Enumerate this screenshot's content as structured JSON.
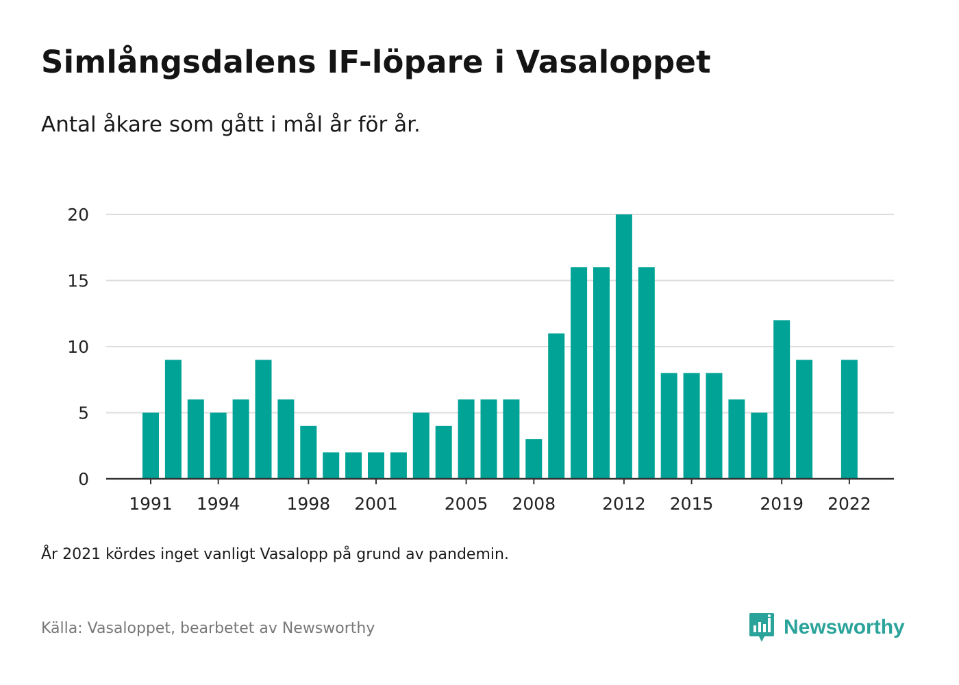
{
  "header": {
    "title": "Simlångsdalens IF-löpare i Vasaloppet",
    "subtitle": "Antal åkare som gått i mål år för år."
  },
  "footer": {
    "note": "År 2021 kördes inget vanligt Vasalopp på grund av pandemin.",
    "source": "Källa: Vasaloppet, bearbetet av Newsworthy",
    "brand": "Newsworthy"
  },
  "colors": {
    "bar": "#00a396",
    "grid": "#dddddd",
    "axis": "#333333",
    "brand": "#2aa39a"
  },
  "icons": {
    "brand_logo": "newsworthy-logo-icon"
  },
  "chart_data": {
    "type": "bar",
    "categories": [
      1991,
      1992,
      1993,
      1994,
      1995,
      1996,
      1997,
      1998,
      1999,
      2000,
      2001,
      2002,
      2003,
      2004,
      2005,
      2006,
      2007,
      2008,
      2009,
      2010,
      2011,
      2012,
      2013,
      2014,
      2015,
      2016,
      2017,
      2018,
      2019,
      2020,
      2021,
      2022
    ],
    "values": [
      5,
      9,
      6,
      5,
      6,
      9,
      6,
      4,
      2,
      2,
      2,
      2,
      5,
      4,
      6,
      6,
      6,
      3,
      11,
      16,
      16,
      20,
      16,
      8,
      8,
      8,
      6,
      5,
      12,
      9,
      null,
      9
    ],
    "x_tick_labels": [
      "1991",
      "1994",
      "1998",
      "2001",
      "2005",
      "2008",
      "2012",
      "2015",
      "2019",
      "2022"
    ],
    "y_ticks": [
      0,
      5,
      10,
      15,
      20
    ],
    "ylim": [
      0,
      20
    ],
    "xlabel": "",
    "ylabel": "",
    "grid": true,
    "legend": "none"
  }
}
